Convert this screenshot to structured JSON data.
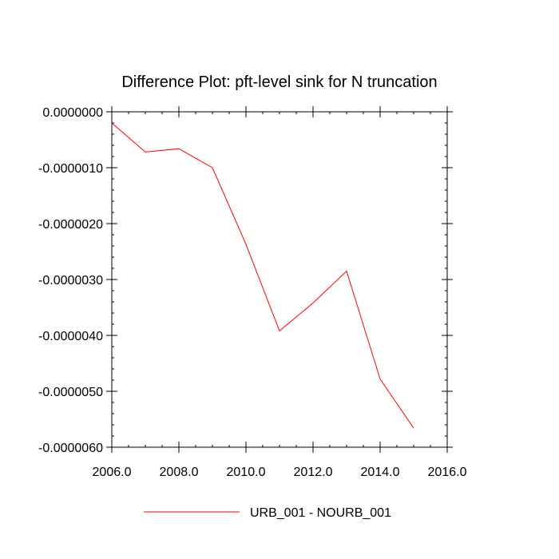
{
  "chart_data": {
    "type": "line",
    "title": "Difference Plot: pft-level sink for N truncation",
    "xlabel": "",
    "ylabel": "",
    "xlim": [
      2006.0,
      2016.0
    ],
    "ylim": [
      -6e-06,
      0.0
    ],
    "x_ticks": [
      2006.0,
      2008.0,
      2010.0,
      2012.0,
      2014.0,
      2016.0
    ],
    "x_tick_labels": [
      "2006.0",
      "2008.0",
      "2010.0",
      "2012.0",
      "2014.0",
      "2016.0"
    ],
    "y_ticks": [
      0.0,
      -1e-06,
      -2e-06,
      -3e-06,
      -4e-06,
      -5e-06,
      -6e-06
    ],
    "y_tick_labels": [
      "0.0000000",
      "-0.0000010",
      "-0.0000020",
      "-0.0000030",
      "-0.0000040",
      "-0.0000050",
      "-0.0000060"
    ],
    "grid": false,
    "legend_position": "bottom",
    "series": [
      {
        "name": "URB_001 - NOURB_001",
        "color": "#ff0000",
        "x": [
          2006,
          2007,
          2008,
          2009,
          2010,
          2011,
          2012,
          2013,
          2014,
          2015
        ],
        "y": [
          -2e-07,
          -7.2e-07,
          -6.6e-07,
          -1e-06,
          -2.37e-06,
          -3.92e-06,
          -3.42e-06,
          -2.85e-06,
          -4.78e-06,
          -5.66e-06
        ]
      }
    ]
  }
}
